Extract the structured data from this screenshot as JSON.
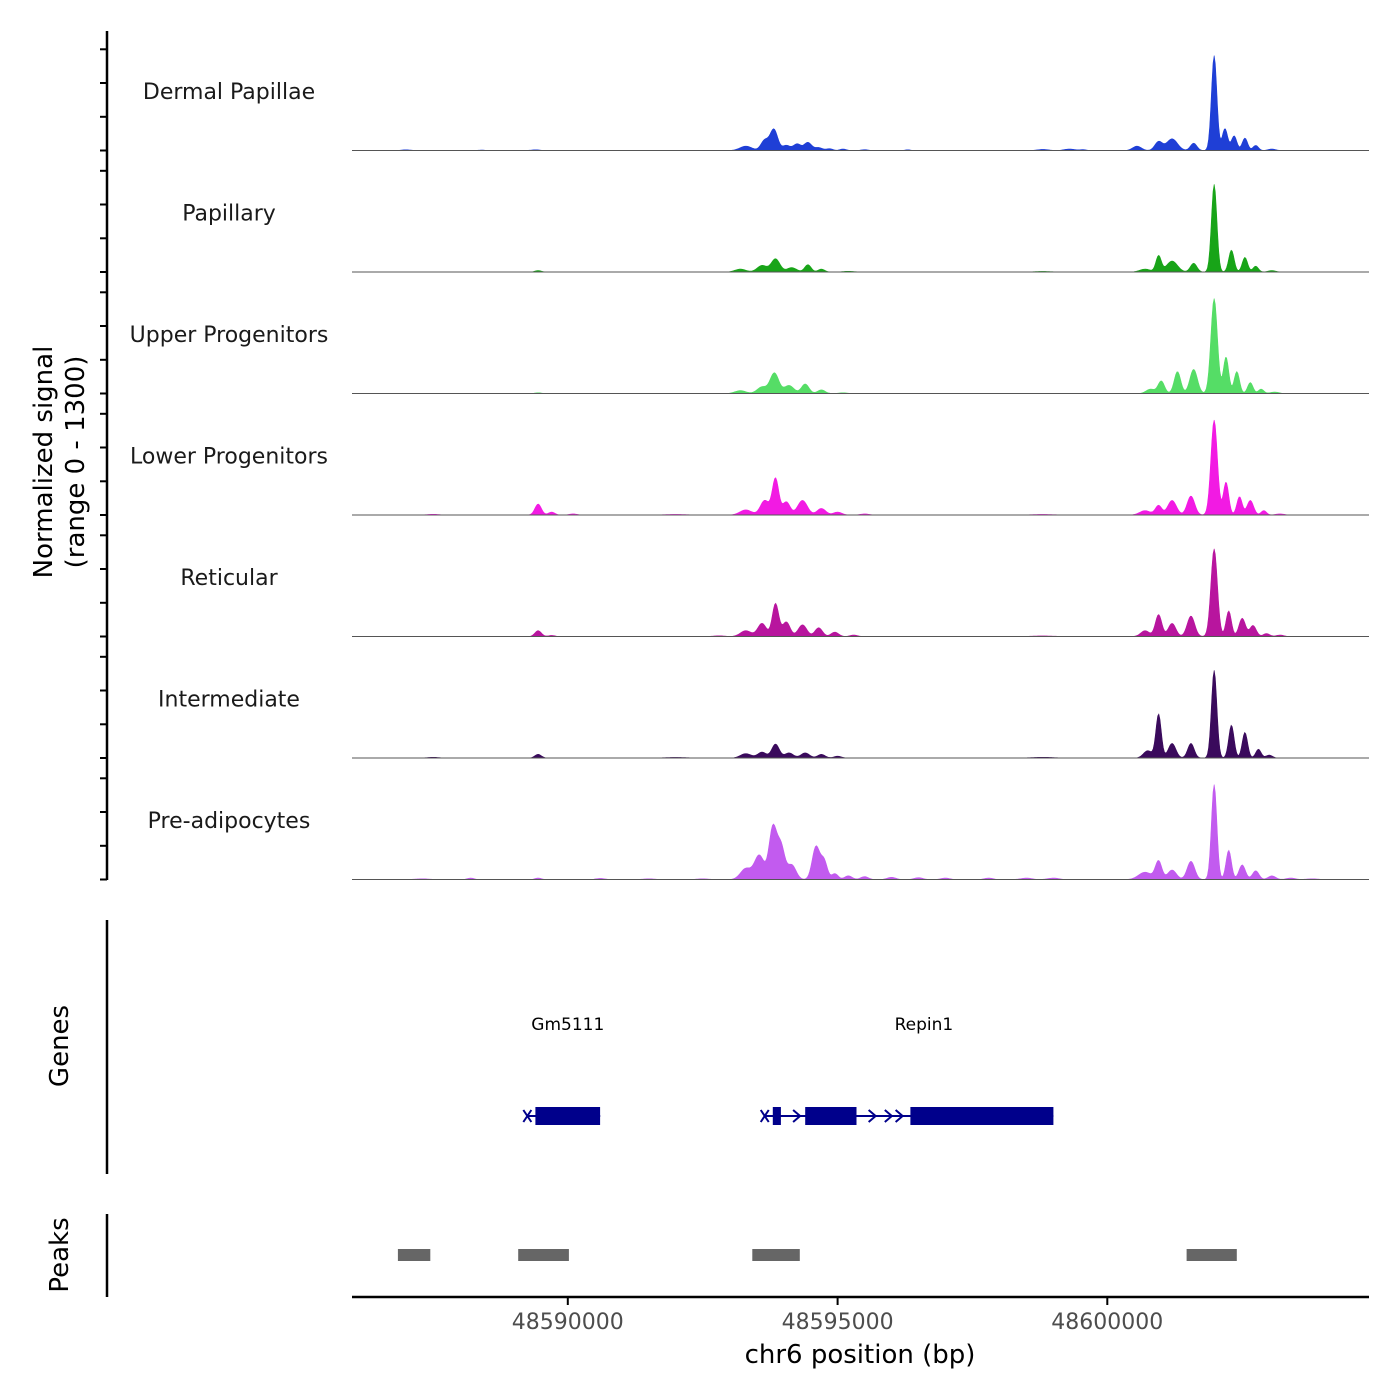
{
  "chart_data": {
    "type": "area",
    "title": "",
    "chromosome": "chr6",
    "xlabel": "chr6 position (bp)",
    "xlim": [
      48586000,
      48604850
    ],
    "x_ticks": [
      48590000,
      48595000,
      48600000
    ],
    "x_tick_labels": [
      "48590000",
      "48595000",
      "48600000"
    ],
    "ylabel_line1": "Normalized signal",
    "ylabel_line2": "(range 0 - 1300)",
    "ylim": [
      0,
      1300
    ],
    "tracks": [
      {
        "name": "Dermal Papillae",
        "color": "#1F3FD6",
        "peaks": [
          [
            48587000,
            10,
            80
          ],
          [
            48588400,
            6,
            60
          ],
          [
            48589400,
            10,
            80
          ],
          [
            48593300,
            60,
            110
          ],
          [
            48593650,
            140,
            70
          ],
          [
            48593820,
            290,
            70
          ],
          [
            48594050,
            70,
            70
          ],
          [
            48594250,
            90,
            70
          ],
          [
            48594450,
            110,
            70
          ],
          [
            48594650,
            40,
            70
          ],
          [
            48594850,
            25,
            60
          ],
          [
            48595100,
            20,
            60
          ],
          [
            48595500,
            12,
            60
          ],
          [
            48596300,
            10,
            50
          ],
          [
            48598800,
            15,
            100
          ],
          [
            48599300,
            20,
            100
          ],
          [
            48599550,
            12,
            60
          ],
          [
            48600550,
            60,
            80
          ],
          [
            48600950,
            120,
            70
          ],
          [
            48601200,
            160,
            100
          ],
          [
            48601600,
            100,
            60
          ],
          [
            48601980,
            1300,
            50
          ],
          [
            48602180,
            300,
            50
          ],
          [
            48602350,
            200,
            50
          ],
          [
            48602550,
            170,
            50
          ],
          [
            48602750,
            70,
            50
          ],
          [
            48603050,
            20,
            70
          ]
        ]
      },
      {
        "name": "Papillary",
        "color": "#18A418",
        "peaks": [
          [
            48589450,
            20,
            60
          ],
          [
            48593200,
            40,
            100
          ],
          [
            48593600,
            90,
            90
          ],
          [
            48593850,
            180,
            80
          ],
          [
            48594150,
            60,
            90
          ],
          [
            48594450,
            100,
            60
          ],
          [
            48594700,
            40,
            60
          ],
          [
            48595200,
            10,
            100
          ],
          [
            48598800,
            8,
            150
          ],
          [
            48600700,
            40,
            100
          ],
          [
            48600950,
            220,
            50
          ],
          [
            48601200,
            150,
            100
          ],
          [
            48601600,
            120,
            60
          ],
          [
            48601980,
            1200,
            50
          ],
          [
            48602300,
            300,
            50
          ],
          [
            48602550,
            200,
            50
          ],
          [
            48602750,
            80,
            50
          ],
          [
            48603050,
            20,
            70
          ]
        ]
      },
      {
        "name": "Upper Progenitors",
        "color": "#55DD66",
        "peaks": [
          [
            48589450,
            10,
            60
          ],
          [
            48593200,
            40,
            100
          ],
          [
            48593600,
            90,
            90
          ],
          [
            48593830,
            280,
            80
          ],
          [
            48594100,
            110,
            90
          ],
          [
            48594400,
            130,
            70
          ],
          [
            48594700,
            50,
            70
          ],
          [
            48595100,
            10,
            80
          ],
          [
            48600800,
            60,
            80
          ],
          [
            48601000,
            170,
            60
          ],
          [
            48601300,
            300,
            60
          ],
          [
            48601600,
            330,
            70
          ],
          [
            48601980,
            1300,
            60
          ],
          [
            48602200,
            500,
            50
          ],
          [
            48602400,
            300,
            50
          ],
          [
            48602650,
            150,
            50
          ],
          [
            48602850,
            60,
            50
          ],
          [
            48603100,
            20,
            80
          ]
        ]
      },
      {
        "name": "Lower Progenitors",
        "color": "#F21AE3",
        "peaks": [
          [
            48587500,
            10,
            100
          ],
          [
            48589450,
            150,
            60
          ],
          [
            48589700,
            40,
            60
          ],
          [
            48590100,
            15,
            70
          ],
          [
            48592000,
            8,
            200
          ],
          [
            48593300,
            70,
            110
          ],
          [
            48593650,
            200,
            80
          ],
          [
            48593850,
            500,
            60
          ],
          [
            48594050,
            180,
            70
          ],
          [
            48594350,
            200,
            90
          ],
          [
            48594700,
            90,
            80
          ],
          [
            48595000,
            40,
            80
          ],
          [
            48595500,
            15,
            80
          ],
          [
            48598800,
            8,
            200
          ],
          [
            48600700,
            60,
            100
          ],
          [
            48600950,
            130,
            60
          ],
          [
            48601200,
            200,
            80
          ],
          [
            48601550,
            260,
            70
          ],
          [
            48601980,
            1300,
            60
          ],
          [
            48602200,
            450,
            50
          ],
          [
            48602450,
            250,
            50
          ],
          [
            48602650,
            200,
            60
          ],
          [
            48602900,
            60,
            50
          ],
          [
            48603200,
            15,
            80
          ]
        ]
      },
      {
        "name": "Reticular",
        "color": "#B8159E",
        "peaks": [
          [
            48589450,
            80,
            60
          ],
          [
            48589700,
            15,
            60
          ],
          [
            48592800,
            10,
            100
          ],
          [
            48593300,
            80,
            100
          ],
          [
            48593600,
            180,
            80
          ],
          [
            48593850,
            450,
            60
          ],
          [
            48594050,
            200,
            70
          ],
          [
            48594350,
            160,
            80
          ],
          [
            48594650,
            120,
            70
          ],
          [
            48594950,
            60,
            70
          ],
          [
            48595300,
            20,
            70
          ],
          [
            48598800,
            8,
            200
          ],
          [
            48600700,
            80,
            80
          ],
          [
            48600950,
            300,
            60
          ],
          [
            48601200,
            180,
            70
          ],
          [
            48601550,
            280,
            70
          ],
          [
            48601980,
            1200,
            60
          ],
          [
            48602250,
            350,
            50
          ],
          [
            48602500,
            250,
            60
          ],
          [
            48602700,
            150,
            60
          ],
          [
            48602950,
            40,
            60
          ],
          [
            48603200,
            20,
            70
          ]
        ]
      },
      {
        "name": "Intermediate",
        "color": "#3A0A5C",
        "peaks": [
          [
            48587500,
            10,
            100
          ],
          [
            48589450,
            50,
            60
          ],
          [
            48592000,
            8,
            200
          ],
          [
            48593300,
            60,
            100
          ],
          [
            48593600,
            80,
            80
          ],
          [
            48593850,
            190,
            70
          ],
          [
            48594100,
            70,
            80
          ],
          [
            48594400,
            70,
            80
          ],
          [
            48594700,
            50,
            70
          ],
          [
            48595000,
            25,
            70
          ],
          [
            48598800,
            10,
            200
          ],
          [
            48600750,
            100,
            80
          ],
          [
            48600950,
            600,
            50
          ],
          [
            48601200,
            200,
            70
          ],
          [
            48601550,
            200,
            60
          ],
          [
            48601980,
            1200,
            50
          ],
          [
            48602300,
            450,
            50
          ],
          [
            48602550,
            350,
            50
          ],
          [
            48602800,
            120,
            50
          ],
          [
            48603000,
            40,
            60
          ]
        ]
      },
      {
        "name": "Pre-adipocytes",
        "color": "#C25BEF",
        "peaks": [
          [
            48587300,
            10,
            120
          ],
          [
            48588200,
            20,
            60
          ],
          [
            48589450,
            20,
            60
          ],
          [
            48590600,
            15,
            80
          ],
          [
            48591500,
            10,
            100
          ],
          [
            48592500,
            10,
            100
          ],
          [
            48593300,
            150,
            100
          ],
          [
            48593550,
            330,
            90
          ],
          [
            48593800,
            700,
            70
          ],
          [
            48593950,
            450,
            70
          ],
          [
            48594150,
            200,
            80
          ],
          [
            48594600,
            450,
            70
          ],
          [
            48594750,
            250,
            60
          ],
          [
            48594950,
            80,
            60
          ],
          [
            48595200,
            50,
            70
          ],
          [
            48595500,
            40,
            70
          ],
          [
            48596000,
            30,
            80
          ],
          [
            48596500,
            25,
            80
          ],
          [
            48597000,
            20,
            80
          ],
          [
            48597800,
            20,
            80
          ],
          [
            48598500,
            20,
            100
          ],
          [
            48599000,
            20,
            100
          ],
          [
            48600700,
            100,
            120
          ],
          [
            48600950,
            250,
            60
          ],
          [
            48601200,
            130,
            80
          ],
          [
            48601550,
            250,
            70
          ],
          [
            48601980,
            1300,
            50
          ],
          [
            48602250,
            400,
            50
          ],
          [
            48602500,
            200,
            60
          ],
          [
            48602750,
            120,
            60
          ],
          [
            48603050,
            50,
            70
          ],
          [
            48603400,
            20,
            80
          ],
          [
            48603800,
            10,
            100
          ]
        ]
      }
    ],
    "genes_label": "Genes",
    "genes": [
      {
        "name": "Gm5111",
        "label_x": 48590000,
        "line": [
          48589250,
          48590600
        ],
        "exons": [
          [
            48589400,
            48590600
          ]
        ]
      },
      {
        "name": "Repin1",
        "label_x": 48596600,
        "line": [
          48593650,
          48599000
        ],
        "exons": [
          [
            48593800,
            48593950
          ],
          [
            48594400,
            48595350
          ],
          [
            48596350,
            48599000
          ]
        ],
        "arrows": [
          48594250,
          48595650,
          48595950,
          48596150
        ]
      }
    ],
    "peaks_label": "Peaks",
    "peak_regions": [
      [
        48586850,
        48587450
      ],
      [
        48589080,
        48590020
      ],
      [
        48593420,
        48594300
      ],
      [
        48601470,
        48602400
      ]
    ]
  }
}
